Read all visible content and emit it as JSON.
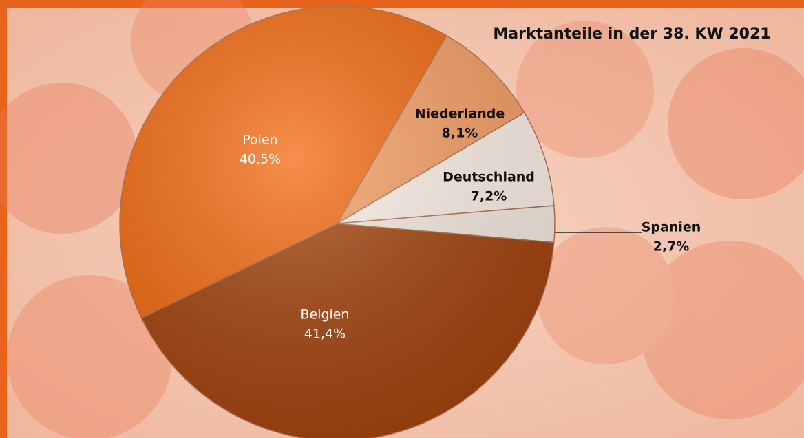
{
  "chart_data": {
    "type": "pie",
    "title": "Marktanteile in der 38. KW 2021",
    "categories": [
      "Belgien",
      "Polen",
      "Niederlande",
      "Deutschland",
      "Spanien"
    ],
    "values": [
      41.4,
      40.5,
      8.1,
      7.2,
      2.7
    ],
    "value_labels": [
      "41,4%",
      "40,5%",
      "8,1%",
      "7,2%",
      "2,7%"
    ],
    "colors": [
      "#a3440f",
      "#f26a10",
      "#f6a066",
      "#fdf1e8",
      "#f6ebe2"
    ]
  }
}
